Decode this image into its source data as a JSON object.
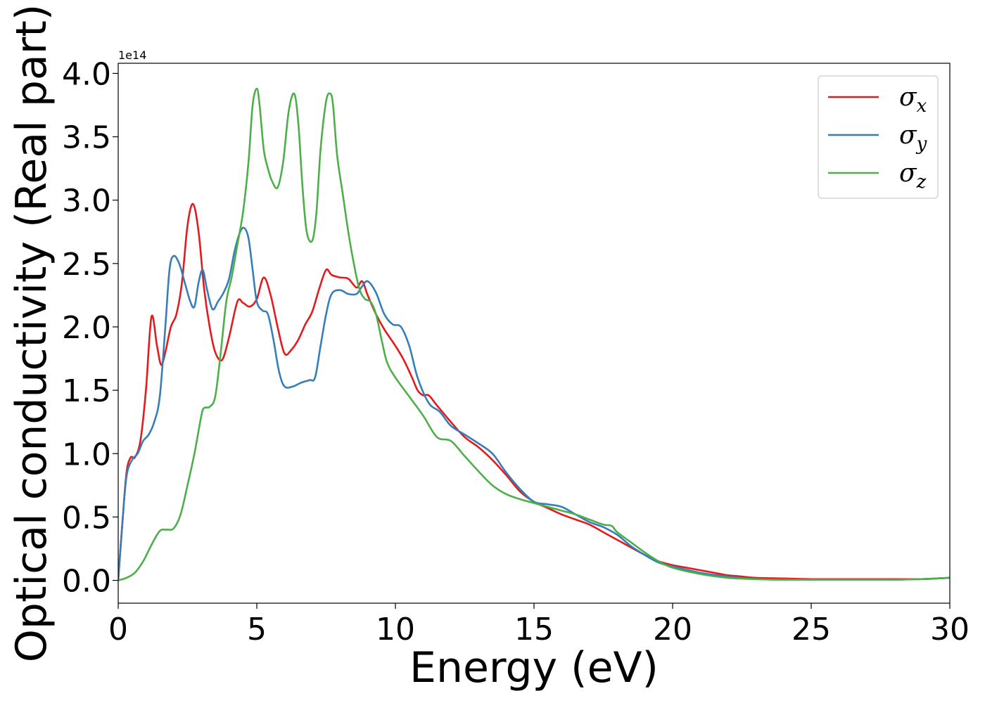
{
  "chart_data": {
    "type": "line",
    "title": "",
    "xlabel": "Energy (eV)",
    "ylabel": "Optical conductivity (Real part)",
    "y_offset_label": "1e14",
    "xlim": [
      0,
      30
    ],
    "ylim": [
      -0.18,
      4.08
    ],
    "xticks": [
      0,
      5,
      10,
      15,
      20,
      25,
      30
    ],
    "xtick_labels": [
      "0",
      "5",
      "10",
      "15",
      "20",
      "25",
      "30"
    ],
    "yticks": [
      0.0,
      0.5,
      1.0,
      1.5,
      2.0,
      2.5,
      3.0,
      3.5,
      4.0
    ],
    "ytick_labels": [
      "0.0",
      "0.5",
      "1.0",
      "1.5",
      "2.0",
      "2.5",
      "3.0",
      "3.5",
      "4.0"
    ],
    "grid": false,
    "legend": {
      "placement": "top-right",
      "entries": [
        {
          "label_base": "σ",
          "label_sub": "x",
          "color": "#e41a1c"
        },
        {
          "label_base": "σ",
          "label_sub": "y",
          "color": "#377eb8"
        },
        {
          "label_base": "σ",
          "label_sub": "z",
          "color": "#4daf4a"
        }
      ]
    },
    "series": [
      {
        "label_sub": "x",
        "color": "#e41a1c",
        "x": [
          0,
          0.15,
          0.3,
          0.45,
          0.6,
          0.8,
          1.0,
          1.2,
          1.4,
          1.55,
          1.7,
          1.9,
          2.1,
          2.3,
          2.5,
          2.7,
          2.9,
          3.1,
          3.3,
          3.5,
          3.75,
          4.0,
          4.3,
          4.5,
          4.75,
          5.0,
          5.25,
          5.5,
          5.75,
          6.0,
          6.25,
          6.5,
          6.75,
          7.0,
          7.25,
          7.5,
          7.7,
          8.0,
          8.3,
          8.6,
          8.8,
          9.0,
          9.3,
          9.6,
          10.0,
          10.3,
          10.6,
          10.8,
          11.0,
          11.2,
          11.5,
          12.0,
          12.5,
          13.0,
          13.5,
          14.0,
          14.5,
          15.0,
          15.5,
          16.0,
          16.5,
          17.0,
          17.5,
          18.0,
          18.5,
          19.0,
          19.5,
          20.0,
          20.5,
          21.0,
          21.5,
          22.0,
          22.5,
          23.0,
          24.0,
          25.0,
          26.0,
          27.0,
          28.0,
          29.0,
          30.0
        ],
        "y": [
          0.0,
          0.45,
          0.85,
          0.97,
          0.97,
          1.1,
          1.5,
          2.08,
          1.85,
          1.7,
          1.8,
          2.0,
          2.1,
          2.35,
          2.8,
          2.97,
          2.75,
          2.3,
          2.0,
          1.8,
          1.74,
          1.92,
          2.2,
          2.19,
          2.16,
          2.22,
          2.39,
          2.25,
          2.0,
          1.79,
          1.82,
          1.9,
          2.02,
          2.12,
          2.3,
          2.45,
          2.41,
          2.39,
          2.38,
          2.31,
          2.36,
          2.25,
          2.1,
          1.98,
          1.85,
          1.74,
          1.6,
          1.5,
          1.46,
          1.46,
          1.38,
          1.25,
          1.13,
          1.05,
          0.95,
          0.83,
          0.7,
          0.62,
          0.57,
          0.52,
          0.48,
          0.44,
          0.38,
          0.32,
          0.26,
          0.2,
          0.15,
          0.12,
          0.1,
          0.08,
          0.06,
          0.04,
          0.03,
          0.02,
          0.015,
          0.01,
          0.01,
          0.01,
          0.01,
          0.01,
          0.02
        ]
      },
      {
        "label_sub": "y",
        "color": "#377eb8",
        "x": [
          0,
          0.15,
          0.3,
          0.5,
          0.7,
          0.9,
          1.1,
          1.3,
          1.5,
          1.7,
          1.85,
          2.0,
          2.2,
          2.4,
          2.6,
          2.75,
          2.9,
          3.05,
          3.2,
          3.4,
          3.6,
          3.8,
          4.0,
          4.2,
          4.4,
          4.55,
          4.7,
          4.85,
          5.0,
          5.2,
          5.4,
          5.6,
          5.8,
          6.0,
          6.3,
          6.6,
          6.9,
          7.1,
          7.3,
          7.5,
          7.7,
          8.0,
          8.3,
          8.6,
          8.8,
          9.0,
          9.3,
          9.6,
          9.9,
          10.2,
          10.5,
          10.8,
          11.2,
          11.6,
          12.0,
          12.5,
          13.0,
          13.5,
          14.0,
          14.5,
          15.0,
          15.5,
          16.0,
          16.5,
          17.0,
          17.5,
          18.0,
          18.5,
          19.0,
          19.5,
          20.0,
          21.0,
          22.0,
          23.0,
          24.0,
          25.0,
          26.0,
          27.0,
          28.0,
          29.0,
          30.0
        ],
        "y": [
          0.0,
          0.45,
          0.82,
          0.95,
          1.0,
          1.1,
          1.15,
          1.25,
          1.45,
          2.0,
          2.45,
          2.56,
          2.5,
          2.35,
          2.2,
          2.16,
          2.35,
          2.45,
          2.3,
          2.14,
          2.2,
          2.27,
          2.38,
          2.6,
          2.75,
          2.78,
          2.7,
          2.45,
          2.2,
          2.13,
          2.1,
          1.9,
          1.65,
          1.53,
          1.53,
          1.56,
          1.58,
          1.6,
          1.85,
          2.1,
          2.26,
          2.29,
          2.26,
          2.26,
          2.32,
          2.36,
          2.27,
          2.1,
          2.02,
          2.0,
          1.85,
          1.6,
          1.4,
          1.33,
          1.22,
          1.15,
          1.08,
          1.0,
          0.85,
          0.72,
          0.62,
          0.6,
          0.58,
          0.52,
          0.46,
          0.42,
          0.36,
          0.27,
          0.2,
          0.14,
          0.11,
          0.06,
          0.03,
          0.01,
          0.005,
          0.005,
          0.005,
          0.005,
          0.005,
          0.01,
          0.02
        ]
      },
      {
        "label_sub": "z",
        "color": "#4daf4a",
        "x": [
          0,
          0.3,
          0.6,
          0.9,
          1.2,
          1.5,
          1.75,
          2.0,
          2.25,
          2.5,
          2.75,
          3.0,
          3.1,
          3.3,
          3.5,
          3.7,
          3.9,
          4.1,
          4.3,
          4.5,
          4.7,
          4.85,
          5.0,
          5.1,
          5.25,
          5.4,
          5.55,
          5.75,
          5.95,
          6.15,
          6.35,
          6.5,
          6.65,
          6.8,
          7.0,
          7.15,
          7.3,
          7.5,
          7.65,
          7.75,
          7.9,
          8.1,
          8.3,
          8.5,
          8.7,
          8.9,
          9.1,
          9.3,
          9.5,
          9.7,
          10.0,
          10.5,
          11.0,
          11.5,
          12.0,
          12.5,
          13.0,
          13.5,
          14.0,
          14.5,
          15.0,
          15.5,
          16.0,
          16.5,
          17.0,
          17.5,
          17.8,
          18.0,
          18.5,
          19.0,
          19.5,
          20.0,
          21.0,
          22.0,
          23.0,
          24.0,
          25.0,
          26.0,
          27.0,
          28.0,
          29.0,
          30.0
        ],
        "y": [
          0.0,
          0.02,
          0.06,
          0.15,
          0.28,
          0.39,
          0.4,
          0.41,
          0.52,
          0.75,
          1.0,
          1.3,
          1.36,
          1.37,
          1.45,
          1.8,
          2.2,
          2.4,
          2.65,
          2.9,
          3.3,
          3.75,
          3.88,
          3.75,
          3.4,
          3.25,
          3.15,
          3.1,
          3.3,
          3.7,
          3.84,
          3.6,
          3.1,
          2.75,
          2.68,
          2.9,
          3.4,
          3.78,
          3.84,
          3.75,
          3.35,
          3.05,
          2.75,
          2.5,
          2.3,
          2.22,
          2.2,
          2.1,
          1.9,
          1.72,
          1.6,
          1.45,
          1.3,
          1.13,
          1.1,
          0.98,
          0.86,
          0.75,
          0.68,
          0.64,
          0.61,
          0.58,
          0.55,
          0.52,
          0.48,
          0.44,
          0.43,
          0.38,
          0.3,
          0.22,
          0.15,
          0.1,
          0.05,
          0.02,
          0.01,
          0.005,
          0.005,
          0.005,
          0.005,
          0.005,
          0.01,
          0.02
        ]
      }
    ]
  }
}
